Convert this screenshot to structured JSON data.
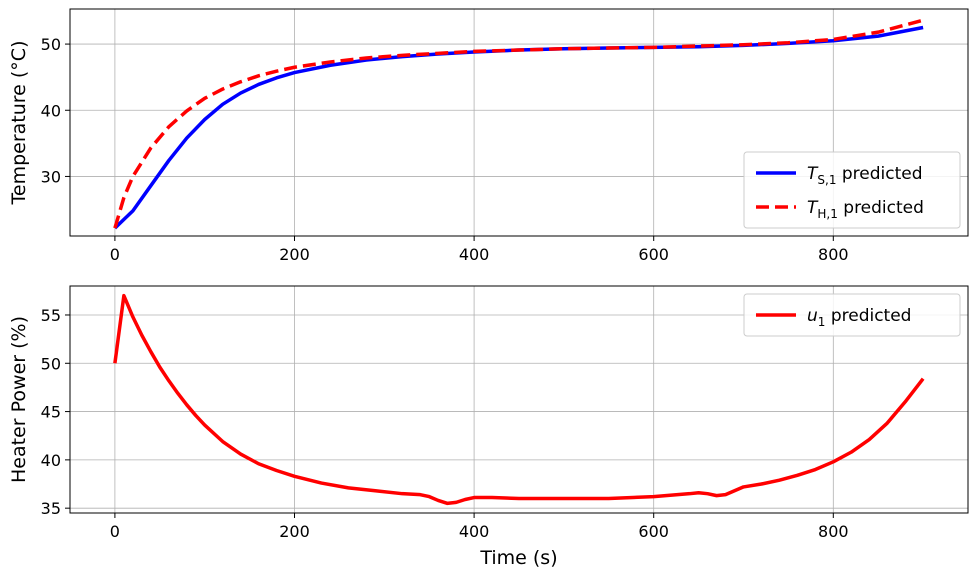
{
  "chart_data": [
    {
      "type": "line",
      "title": "",
      "xlabel": "",
      "ylabel": "Temperature (°C)",
      "xlim": [
        -50,
        950
      ],
      "ylim": [
        21,
        55.3
      ],
      "xticks": [
        0,
        200,
        400,
        600,
        800
      ],
      "yticks": [
        30,
        40,
        50
      ],
      "grid": true,
      "legend_position": "lower-right",
      "series": [
        {
          "name": "T_{S,1} predicted",
          "legend_main": "T",
          "legend_sub": "S,1",
          "legend_rest": " predicted",
          "color": "#0000ff",
          "dash": "solid",
          "x": [
            0,
            20,
            40,
            60,
            80,
            100,
            120,
            140,
            160,
            180,
            200,
            240,
            280,
            320,
            360,
            400,
            450,
            500,
            550,
            600,
            650,
            700,
            750,
            800,
            850,
            900
          ],
          "y": [
            22.2,
            24.8,
            28.6,
            32.4,
            35.8,
            38.6,
            40.9,
            42.6,
            43.9,
            44.9,
            45.7,
            46.8,
            47.6,
            48.1,
            48.5,
            48.8,
            49.1,
            49.3,
            49.4,
            49.5,
            49.6,
            49.8,
            50.1,
            50.5,
            51.2,
            52.5
          ]
        },
        {
          "name": "T_{H,1} predicted",
          "legend_main": "T",
          "legend_sub": "H,1",
          "legend_rest": " predicted",
          "color": "#ff0000",
          "dash": "dashed",
          "x": [
            0,
            10,
            20,
            40,
            60,
            80,
            100,
            120,
            140,
            160,
            180,
            200,
            240,
            280,
            320,
            360,
            400,
            450,
            500,
            550,
            600,
            650,
            700,
            750,
            800,
            850,
            900
          ],
          "y": [
            22.2,
            26.8,
            30.0,
            34.3,
            37.5,
            39.9,
            41.8,
            43.2,
            44.3,
            45.2,
            45.9,
            46.5,
            47.3,
            47.9,
            48.3,
            48.6,
            48.9,
            49.1,
            49.3,
            49.4,
            49.5,
            49.7,
            49.9,
            50.2,
            50.7,
            51.8,
            53.6
          ]
        }
      ]
    },
    {
      "type": "line",
      "title": "",
      "xlabel": "Time (s)",
      "ylabel": "Heater Power (%)",
      "xlim": [
        -50,
        950
      ],
      "ylim": [
        34.5,
        58
      ],
      "xticks": [
        0,
        200,
        400,
        600,
        800
      ],
      "yticks": [
        35,
        40,
        45,
        50,
        55
      ],
      "grid": true,
      "legend_position": "upper-right",
      "series": [
        {
          "name": "u_1 predicted",
          "legend_main": "u",
          "legend_sub": "1",
          "legend_rest": " predicted",
          "color": "#ff0000",
          "dash": "solid",
          "x": [
            0,
            10,
            20,
            30,
            40,
            50,
            60,
            70,
            80,
            90,
            100,
            120,
            140,
            160,
            180,
            200,
            230,
            260,
            290,
            320,
            340,
            350,
            360,
            370,
            380,
            390,
            400,
            420,
            450,
            500,
            550,
            600,
            640,
            650,
            660,
            670,
            680,
            690,
            700,
            720,
            740,
            760,
            780,
            800,
            820,
            840,
            860,
            880,
            900
          ],
          "y": [
            50.0,
            57.0,
            54.8,
            52.9,
            51.2,
            49.6,
            48.2,
            46.9,
            45.7,
            44.6,
            43.6,
            41.9,
            40.6,
            39.6,
            38.9,
            38.3,
            37.6,
            37.1,
            36.8,
            36.5,
            36.4,
            36.2,
            35.8,
            35.5,
            35.6,
            35.9,
            36.1,
            36.1,
            36.0,
            36.0,
            36.0,
            36.2,
            36.5,
            36.6,
            36.5,
            36.3,
            36.4,
            36.8,
            37.2,
            37.5,
            37.9,
            38.4,
            39.0,
            39.8,
            40.8,
            42.1,
            43.8,
            46.0,
            48.4
          ]
        }
      ]
    }
  ]
}
